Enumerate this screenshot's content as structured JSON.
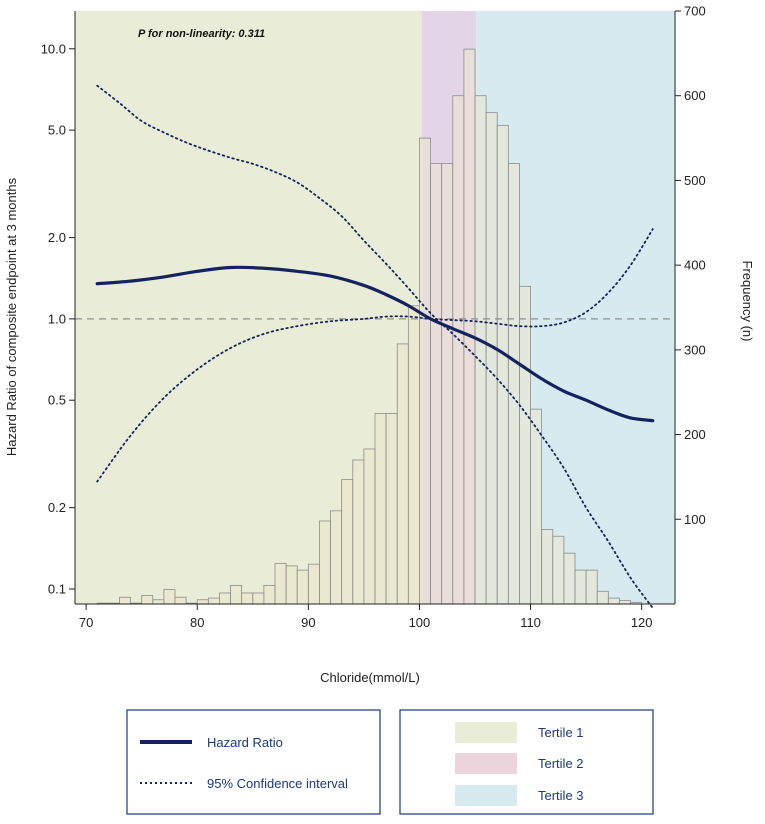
{
  "chart_data": {
    "type": "line",
    "annotation": "P for non-linearity: 0.311",
    "xlabel": "Chloride(mmol/L)",
    "ylabel_left": "Hazard Ratio of composite endpoint at 3 months",
    "ylabel_right": "Frequency (n)",
    "xlim": [
      69,
      123
    ],
    "ylim_left_log": [
      0.088,
      13.8
    ],
    "ylim_right": [
      0,
      700
    ],
    "x_ticks": [
      70,
      80,
      90,
      100,
      110,
      120
    ],
    "y_left_ticks": [
      {
        "value": 0.1,
        "label": "0.1"
      },
      {
        "value": 0.2,
        "label": "0.2"
      },
      {
        "value": 0.5,
        "label": "0.5"
      },
      {
        "value": 1.0,
        "label": "1.0"
      },
      {
        "value": 2.0,
        "label": "2.0"
      },
      {
        "value": 5.0,
        "label": "5.0"
      },
      {
        "value": 10.0,
        "label": "10.0"
      }
    ],
    "y_right_ticks": [
      100,
      200,
      300,
      400,
      500,
      600,
      700
    ],
    "reference_line": 1.0,
    "tertile_regions": [
      {
        "name": "Tertile 1",
        "from": 69,
        "to": 100.2,
        "color": "#e9ecd6"
      },
      {
        "name": "Tertile 2",
        "from": 100.2,
        "to": 105.1,
        "color": "#e4d4e8"
      },
      {
        "name": "Tertile 3",
        "from": 105.1,
        "to": 123,
        "color": "#d6eaf0"
      }
    ],
    "histogram": {
      "bin_width": 1,
      "bins": [
        {
          "start": 71,
          "count": 1
        },
        {
          "start": 72,
          "count": 1
        },
        {
          "start": 73,
          "count": 8
        },
        {
          "start": 74,
          "count": 1
        },
        {
          "start": 75,
          "count": 10
        },
        {
          "start": 76,
          "count": 5
        },
        {
          "start": 77,
          "count": 17
        },
        {
          "start": 78,
          "count": 8
        },
        {
          "start": 79,
          "count": 1
        },
        {
          "start": 80,
          "count": 5
        },
        {
          "start": 81,
          "count": 7
        },
        {
          "start": 82,
          "count": 13
        },
        {
          "start": 83,
          "count": 22
        },
        {
          "start": 84,
          "count": 13
        },
        {
          "start": 85,
          "count": 13
        },
        {
          "start": 86,
          "count": 22
        },
        {
          "start": 87,
          "count": 48
        },
        {
          "start": 88,
          "count": 45
        },
        {
          "start": 89,
          "count": 40
        },
        {
          "start": 90,
          "count": 47
        },
        {
          "start": 91,
          "count": 98
        },
        {
          "start": 92,
          "count": 110
        },
        {
          "start": 93,
          "count": 147
        },
        {
          "start": 94,
          "count": 170
        },
        {
          "start": 95,
          "count": 183
        },
        {
          "start": 96,
          "count": 225
        },
        {
          "start": 97,
          "count": 225
        },
        {
          "start": 98,
          "count": 307
        },
        {
          "start": 99,
          "count": 352
        },
        {
          "start": 100,
          "count": 550
        },
        {
          "start": 101,
          "count": 520
        },
        {
          "start": 102,
          "count": 520
        },
        {
          "start": 103,
          "count": 600
        },
        {
          "start": 104,
          "count": 655
        },
        {
          "start": 105,
          "count": 600
        },
        {
          "start": 106,
          "count": 580
        },
        {
          "start": 107,
          "count": 565
        },
        {
          "start": 108,
          "count": 520
        },
        {
          "start": 109,
          "count": 375
        },
        {
          "start": 110,
          "count": 230
        },
        {
          "start": 111,
          "count": 88
        },
        {
          "start": 112,
          "count": 80
        },
        {
          "start": 113,
          "count": 60
        },
        {
          "start": 114,
          "count": 40
        },
        {
          "start": 115,
          "count": 40
        },
        {
          "start": 116,
          "count": 15
        },
        {
          "start": 117,
          "count": 7
        },
        {
          "start": 118,
          "count": 4
        },
        {
          "start": 119,
          "count": 2
        }
      ]
    },
    "series": [
      {
        "name": "Hazard Ratio",
        "style": "solid",
        "color": "#14235f",
        "x": [
          71,
          74,
          77,
          80,
          83,
          86,
          89,
          92,
          95,
          97,
          99,
          101,
          103,
          105,
          107,
          109,
          111,
          113,
          115,
          117,
          119,
          121
        ],
        "y": [
          1.35,
          1.38,
          1.43,
          1.5,
          1.55,
          1.54,
          1.5,
          1.44,
          1.33,
          1.23,
          1.12,
          1.0,
          0.92,
          0.85,
          0.77,
          0.68,
          0.6,
          0.54,
          0.5,
          0.46,
          0.43,
          0.42
        ]
      },
      {
        "name": "95% Confidence interval (upper)",
        "style": "dotted",
        "color": "#14235f",
        "x": [
          71,
          73,
          75,
          77,
          79,
          81,
          83,
          85,
          87,
          89,
          91,
          93,
          95,
          97,
          99,
          101,
          103,
          105,
          107,
          109,
          111,
          113,
          115,
          117,
          119,
          121
        ],
        "y": [
          7.3,
          6.3,
          5.4,
          4.9,
          4.5,
          4.2,
          3.95,
          3.75,
          3.5,
          3.2,
          2.8,
          2.4,
          1.95,
          1.6,
          1.3,
          1.05,
          0.88,
          0.73,
          0.6,
          0.48,
          0.37,
          0.28,
          0.2,
          0.15,
          0.11,
          0.085
        ]
      },
      {
        "name": "95% Confidence interval (lower)",
        "style": "dotted",
        "color": "#14235f",
        "x": [
          71,
          74,
          77,
          80,
          83,
          86,
          89,
          92,
          95,
          97,
          99,
          101,
          103,
          105,
          107,
          109,
          111,
          113,
          115,
          117,
          119,
          121
        ],
        "y": [
          0.25,
          0.37,
          0.51,
          0.65,
          0.78,
          0.88,
          0.94,
          0.98,
          1.0,
          1.02,
          1.02,
          1.0,
          0.99,
          0.98,
          0.96,
          0.94,
          0.94,
          0.97,
          1.06,
          1.25,
          1.58,
          2.15
        ]
      }
    ]
  },
  "legend_lines": {
    "hazard_ratio": "Hazard Ratio",
    "confidence_interval": "95% Confidence interval"
  },
  "legend_tertiles": {
    "tertile1": "Tertile 1",
    "tertile2": "Tertile 2",
    "tertile3": "Tertile 3"
  },
  "colors": {
    "line": "#14235f",
    "legend_text": "#1a3a7a",
    "bar_fill": "#ede6cc",
    "bar_stroke": "#8c8c8c",
    "reference": "#909090"
  }
}
